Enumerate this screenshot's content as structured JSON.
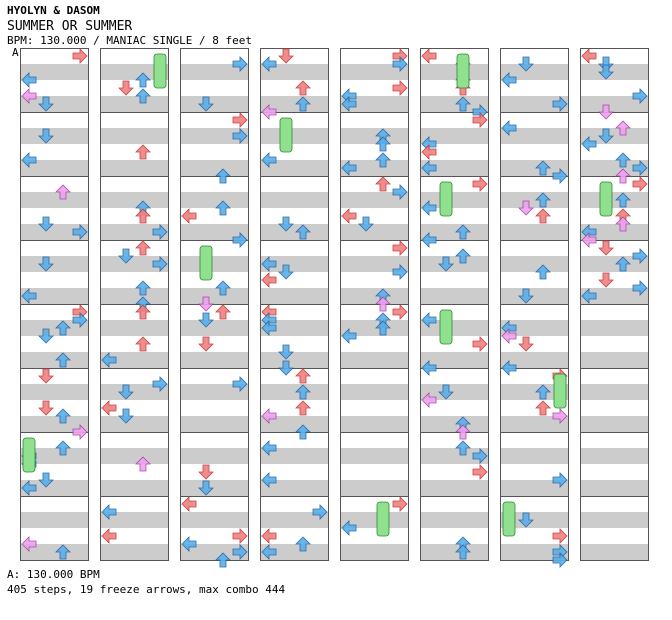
{
  "header": {
    "artist": "HYOLYN & DASOM",
    "title": "SUMMER OR SUMMER",
    "info": "BPM: 130.000 / MANIAC SINGLE / 8 feet",
    "section_marker": "A"
  },
  "footer": {
    "bpm_line": "A: 130.000 BPM",
    "stats_line": "405 steps, 19 freeze arrows, max combo 444"
  },
  "colors": {
    "quarter_red": "#f08080",
    "eighth_blue": "#5aaee8",
    "sixteenth_pink": "#f0a0f0",
    "freeze_green": "#90e090",
    "stripe_gray": "#cccccc",
    "column_border": "#555555"
  },
  "chart_data": {
    "type": "table",
    "columns": 8,
    "measures_per_column": 8,
    "lanes": [
      "left",
      "down",
      "up",
      "right"
    ]
  }
}
